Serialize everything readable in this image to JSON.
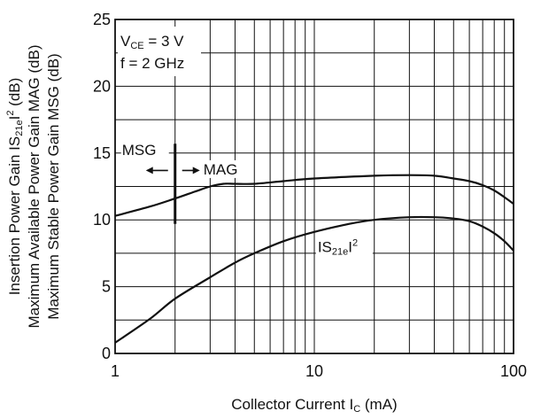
{
  "chart_data": {
    "type": "line",
    "x_scale": "log",
    "xlim": [
      1,
      100
    ],
    "ylim": [
      0,
      25
    ],
    "grid": true,
    "xlabel": {
      "main": "Collector Current  I",
      "sub": "C",
      "unit": " (mA)"
    },
    "ylabel_lines": [
      {
        "pre": "Insertion Power Gain  IS",
        "sub": "21e",
        "mid": "I",
        "sup": "2",
        "post": " (dB)"
      },
      {
        "pre": "Maximum Available Power Gain  MAG (dB)"
      },
      {
        "pre": "Maximum Stable Power Gain  MSG (dB)"
      }
    ],
    "x_ticks": [
      {
        "value": 1,
        "label": "1"
      },
      {
        "value": 10,
        "label": "10"
      },
      {
        "value": 100,
        "label": "100"
      }
    ],
    "y_ticks": [
      {
        "value": 0,
        "label": "0"
      },
      {
        "value": 5,
        "label": "5"
      },
      {
        "value": 10,
        "label": "10"
      },
      {
        "value": 15,
        "label": "15"
      },
      {
        "value": 20,
        "label": "20"
      },
      {
        "value": 25,
        "label": "25"
      }
    ],
    "conditions": {
      "vce": {
        "main": "V",
        "sub": "CE",
        "rest": " = 3 V"
      },
      "freq": "f = 2 GHz"
    },
    "series": [
      {
        "name": "MSG / MAG",
        "points": [
          [
            1,
            10.3
          ],
          [
            1.5,
            11.0
          ],
          [
            2,
            11.6
          ],
          [
            2.5,
            12.1
          ],
          [
            3,
            12.5
          ],
          [
            3.5,
            12.7
          ],
          [
            4,
            12.7
          ],
          [
            5,
            12.7
          ],
          [
            7,
            12.9
          ],
          [
            10,
            13.1
          ],
          [
            20,
            13.3
          ],
          [
            30,
            13.35
          ],
          [
            40,
            13.3
          ],
          [
            50,
            13.1
          ],
          [
            60,
            12.9
          ],
          [
            70,
            12.6
          ],
          [
            80,
            12.2
          ],
          [
            90,
            11.7
          ],
          [
            100,
            11.2
          ]
        ]
      },
      {
        "name": "IS21eI²",
        "label": {
          "main": "IS",
          "sub": "21e",
          "mid": "I",
          "sup": "2"
        },
        "points": [
          [
            1,
            0.8
          ],
          [
            1.5,
            2.6
          ],
          [
            2,
            4.1
          ],
          [
            3,
            5.7
          ],
          [
            4,
            6.8
          ],
          [
            5,
            7.5
          ],
          [
            7,
            8.4
          ],
          [
            10,
            9.1
          ],
          [
            15,
            9.7
          ],
          [
            20,
            10.0
          ],
          [
            30,
            10.2
          ],
          [
            40,
            10.2
          ],
          [
            50,
            10.1
          ],
          [
            60,
            9.9
          ],
          [
            70,
            9.5
          ],
          [
            80,
            9.0
          ],
          [
            90,
            8.4
          ],
          [
            100,
            7.7
          ]
        ]
      }
    ],
    "annotations": {
      "msg": "MSG",
      "mag": "MAG",
      "divider_x": 2,
      "divider_y": [
        9.7,
        15.7
      ]
    }
  }
}
